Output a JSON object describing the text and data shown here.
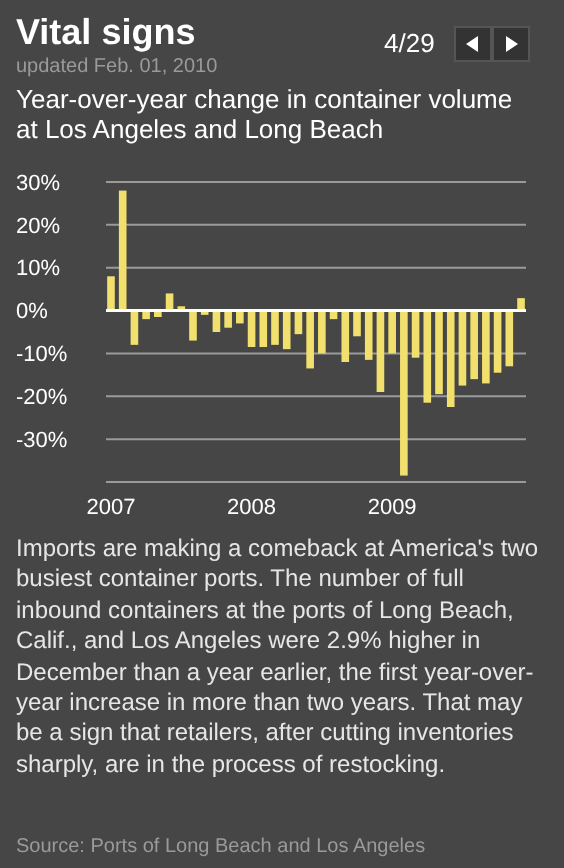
{
  "chart_data": {
    "type": "bar",
    "title": "Vital signs",
    "subtitle": "Year-over-year change in container volume at Los Angeles and Long Beach",
    "annotations": [
      "updated Feb. 01, 2010",
      "4/29",
      "Imports are making a comeback at America's two busiest container ports. The number of full inbound containers at the ports of Long Beach, Calif., and Los Angeles were 2.9% higher in December than a year earlier, the first year-over-year increase in more than two years. That may be a sign that retailers, after cutting inventories sharply, are in the process of restocking.",
      "Source: Ports of Long Beach and Los Angeles"
    ],
    "categories": [
      "2007",
      null,
      null,
      null,
      null,
      null,
      null,
      null,
      null,
      null,
      null,
      null,
      "2008",
      null,
      null,
      null,
      null,
      null,
      null,
      null,
      null,
      null,
      null,
      null,
      "2009",
      null,
      null,
      null,
      null,
      null,
      null,
      null,
      null,
      null,
      null,
      null
    ],
    "values": [
      8,
      28,
      -8,
      -2,
      -1.5,
      4,
      1,
      -7,
      -1,
      -5,
      -4,
      -3,
      -8.5,
      -8.5,
      -8,
      -9,
      -5.5,
      -13.5,
      -10,
      -2,
      -12,
      -6,
      -11.5,
      -19,
      -10,
      -38.5,
      -11,
      -21.5,
      -19.5,
      -22.5,
      -17.5,
      -16,
      -17,
      -14.5,
      -13,
      2.9
    ],
    "color": "#f2e06e",
    "ylim": [
      -40,
      30
    ],
    "yticks": [
      {
        "value": -40,
        "label": null
      },
      {
        "value": -30,
        "label": "-30%"
      },
      {
        "value": -20,
        "label": "-20%"
      },
      {
        "value": -10,
        "label": "-10%"
      },
      {
        "value": 0,
        "label": "0%"
      },
      {
        "value": 10,
        "label": "10%"
      },
      {
        "value": 20,
        "label": "20%"
      },
      {
        "value": 30,
        "label": "30%"
      }
    ],
    "grid": "y"
  }
}
